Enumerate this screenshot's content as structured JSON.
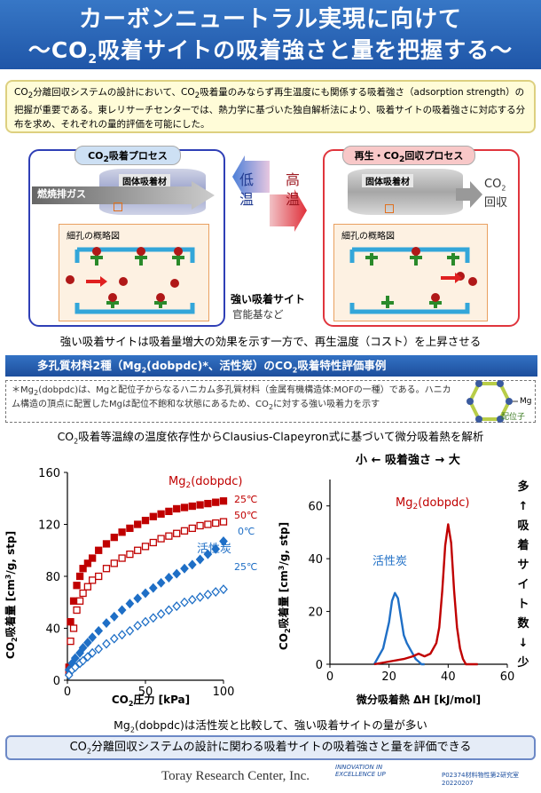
{
  "header": {
    "line1": "カーボンニュートラル実現に向けて",
    "line2a": "～CO",
    "line2sub": "2",
    "line2b": "吸着サイトの吸着強さと量を把握する～"
  },
  "intro": {
    "p1a": "CO",
    "p1sub": "2",
    "p1b": "分離回収システムの設計において、CO",
    "p1sub2": "2",
    "p1c": "吸着量のみならず再生温度にも関係する吸着強さ（adsorption strength）の把握が重要である。東レリサーチセンターでは、熱力学に基づいた独自解析法により、吸着サイトの吸着強さに対応する分布を求め、それぞれの量的評価を可能にした。"
  },
  "diagram": {
    "left_title_a": "CO",
    "left_title_sub": "2",
    "left_title_b": "吸着プロセス",
    "right_title": "再生・CO",
    "right_title_sub": "2",
    "right_title_b": "回収プロセス",
    "sorbent": "固体吸着材",
    "flue_gas": "燃焼排ガス",
    "pore_label": "細孔の概略図",
    "low_temp_1": "低",
    "low_temp_2": "温",
    "high_temp_1": "高",
    "high_temp_2": "温",
    "co2_out_a": "CO",
    "co2_out_sub": "2",
    "co2_out_b": "回収",
    "strong_site": "強い吸着サイト",
    "functional": "官能基など"
  },
  "caption1": "強い吸着サイトは吸着量増大の効果を示す一方で、再生温度（コスト）を上昇させる",
  "section_bar": {
    "a": "多孔質材料2種（Mg",
    "sub": "2",
    "b": "(dobpdc)*、活性炭）のCO",
    "sub2": "2",
    "c": "吸着特性評価事例"
  },
  "note": {
    "a": "＊Mg",
    "sub": "2",
    "b": "(dobpdc)は、Mgと配位子からなるハニカム多孔質材料（金属有機構造体:MOFの一種）である。ハニカム構造の頂点に配置したMgは配位不飽和な状態にあるため、CO",
    "sub2": "2",
    "c": "に対する強い吸着力を示す",
    "mg_label": "Mg",
    "ligand_label": "配位子"
  },
  "caption2": {
    "a": "CO",
    "sub": "2",
    "b": "吸着等温線の温度依存性からClausius-Clapeyron式に基づいて微分吸着熱を解析"
  },
  "chart_data": [
    {
      "type": "scatter",
      "xlabel": "CO2圧力 [kPa]",
      "ylabel": "CO2吸着量 [cm3/g, stp]",
      "xlim": [
        0,
        100
      ],
      "ylim": [
        0,
        160
      ],
      "xticks": [
        0,
        50,
        100
      ],
      "yticks": [
        0,
        40,
        80,
        120,
        160
      ],
      "series": [
        {
          "name": "Mg2(dobpdc) 25℃",
          "marker": "filled-square",
          "color": "#c00000",
          "x": [
            1,
            2,
            4,
            6,
            8,
            10,
            13,
            16,
            20,
            25,
            30,
            35,
            40,
            45,
            50,
            55,
            60,
            65,
            70,
            75,
            80,
            85,
            90,
            95,
            100
          ],
          "y": [
            10,
            45,
            61,
            73,
            80,
            86,
            90,
            94,
            100,
            105,
            110,
            114,
            117,
            120,
            123,
            126,
            128,
            130,
            132,
            133,
            134,
            135,
            136,
            137,
            138
          ]
        },
        {
          "name": "Mg2(dobpdc) 50℃",
          "marker": "open-square",
          "color": "#c00000",
          "x": [
            1,
            2,
            4,
            6,
            8,
            10,
            13,
            16,
            20,
            25,
            30,
            35,
            40,
            45,
            50,
            55,
            60,
            65,
            70,
            75,
            80,
            85,
            90,
            95,
            100
          ],
          "y": [
            6,
            30,
            40,
            54,
            61,
            67,
            72,
            77,
            80,
            86,
            90,
            94,
            97,
            100,
            103,
            106,
            109,
            111,
            113,
            115,
            117,
            119,
            120,
            121,
            122
          ]
        },
        {
          "name": "活性炭 0℃",
          "marker": "filled-diamond",
          "color": "#1f6fc6",
          "x": [
            1,
            3,
            5,
            8,
            10,
            13,
            16,
            20,
            25,
            30,
            35,
            40,
            45,
            50,
            55,
            60,
            65,
            70,
            75,
            80,
            85,
            90,
            95,
            100
          ],
          "y": [
            8,
            13,
            17,
            21,
            25,
            29,
            33,
            38,
            44,
            49,
            54,
            59,
            63,
            67,
            71,
            75,
            79,
            82,
            86,
            89,
            93,
            97,
            101,
            107
          ]
        },
        {
          "name": "活性炭 25℃",
          "marker": "open-diamond",
          "color": "#1f6fc6",
          "x": [
            1,
            3,
            5,
            8,
            10,
            13,
            16,
            20,
            25,
            30,
            35,
            40,
            45,
            50,
            55,
            60,
            65,
            70,
            75,
            80,
            85,
            90,
            95,
            100
          ],
          "y": [
            4,
            8,
            10,
            13,
            15,
            18,
            21,
            24,
            28,
            32,
            35,
            38,
            42,
            45,
            48,
            51,
            54,
            57,
            60,
            62,
            64,
            66,
            68,
            70
          ]
        }
      ],
      "labels": {
        "mg": "Mg2(dobpdc)",
        "ac": "活性炭",
        "t25": "25℃",
        "t50": "50℃",
        "t0": "0℃",
        "t25b": "25℃"
      }
    },
    {
      "type": "line",
      "xlabel": "微分吸着熱 ΔH [kJ/mol]",
      "ylabel": "CO2吸着量 [cm3/g, stp]",
      "xlim": [
        0,
        60
      ],
      "ylim": [
        0,
        70
      ],
      "xticks": [
        0,
        20,
        40,
        60
      ],
      "yticks": [
        0,
        20,
        40,
        60
      ],
      "series": [
        {
          "name": "活性炭",
          "color": "#1f6fc6",
          "x": [
            15,
            18,
            20,
            21,
            22,
            23,
            24,
            25,
            26,
            27,
            28,
            29,
            30,
            31,
            32
          ],
          "y": [
            0,
            6,
            16,
            24,
            27,
            25,
            18,
            11,
            8,
            6,
            4,
            2,
            1,
            0,
            0
          ]
        },
        {
          "name": "Mg2(dobpdc)",
          "color": "#c00000",
          "x": [
            15,
            20,
            25,
            28,
            30,
            32,
            34,
            36,
            37,
            38,
            39,
            40,
            41,
            42,
            43,
            44,
            45,
            46,
            48,
            50
          ],
          "y": [
            0,
            1,
            2,
            3,
            4,
            3,
            4,
            8,
            14,
            28,
            45,
            53,
            46,
            28,
            14,
            6,
            2,
            0,
            0,
            0
          ]
        }
      ],
      "top_label": "小 ← 吸着強さ → 大",
      "side_label": [
        "多",
        "↑",
        "吸",
        "着",
        "サ",
        "イ",
        "ト",
        "数",
        "↓",
        "少"
      ]
    }
  ],
  "caption3": {
    "a": "Mg",
    "sub": "2",
    "b": "(dobpdc)は活性炭と比較して、強い吸着サイトの量が多い"
  },
  "bottom": {
    "a": "CO",
    "sub": "2",
    "b": "分離回収システムの設計に関わる吸着サイトの吸着強さと量を評価できる"
  },
  "footer": {
    "company": "Toray Research Center, Inc.",
    "slogan1": "INNOVATION IN",
    "slogan2": "EXCELLENCE UP",
    "code": "P02374材料物性第2研究室20220207"
  }
}
